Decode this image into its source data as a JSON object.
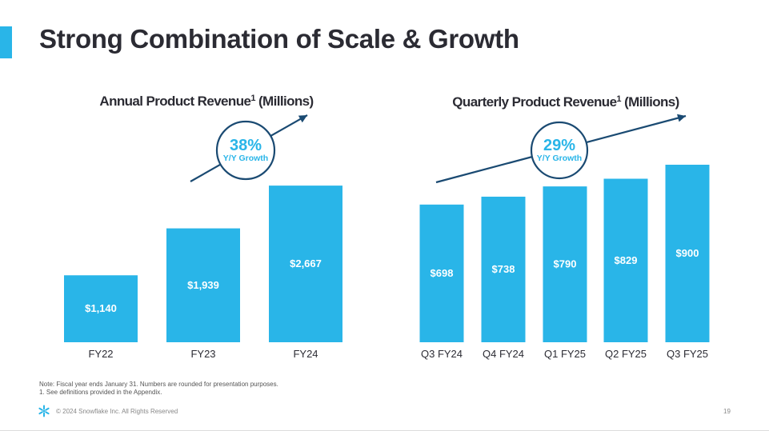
{
  "slide": {
    "title": "Strong Combination of Scale & Growth",
    "note_line1": "Note: Fiscal year ends January 31. Numbers are rounded for presentation purposes.",
    "note_line2": "1. See definitions provided in the Appendix.",
    "footer": "© 2024 Snowflake Inc. All Rights Reserved",
    "page_number": "19",
    "accent_color": "#29b5e8",
    "arrow_color": "#1a4a72",
    "logo_icon": "snowflake-logo-icon"
  },
  "chart_data": [
    {
      "type": "bar",
      "title_main": "Annual Product Revenue",
      "title_sup": "1",
      "title_tail": " (Millions)",
      "categories": [
        "FY22",
        "FY23",
        "FY24"
      ],
      "values": [
        1140,
        1939,
        2667
      ],
      "value_labels": [
        "$1,140",
        "$1,939",
        "$2,667"
      ],
      "annotation": {
        "pct": "38%",
        "sub": "Y/Y Growth"
      },
      "ylim": [
        0,
        2900
      ],
      "grid": false,
      "legend": "none"
    },
    {
      "type": "bar",
      "title_main": "Quarterly Product Revenue",
      "title_sup": "1",
      "title_tail": " (Millions)",
      "categories": [
        "Q3 FY24",
        "Q4 FY24",
        "Q1 FY25",
        "Q2 FY25",
        "Q3 FY25"
      ],
      "values": [
        698,
        738,
        790,
        829,
        900
      ],
      "value_labels": [
        "$698",
        "$738",
        "$790",
        "$829",
        "$900"
      ],
      "annotation": {
        "pct": "29%",
        "sub": "Y/Y Growth"
      },
      "ylim": [
        0,
        900
      ],
      "grid": false,
      "legend": "none"
    }
  ]
}
